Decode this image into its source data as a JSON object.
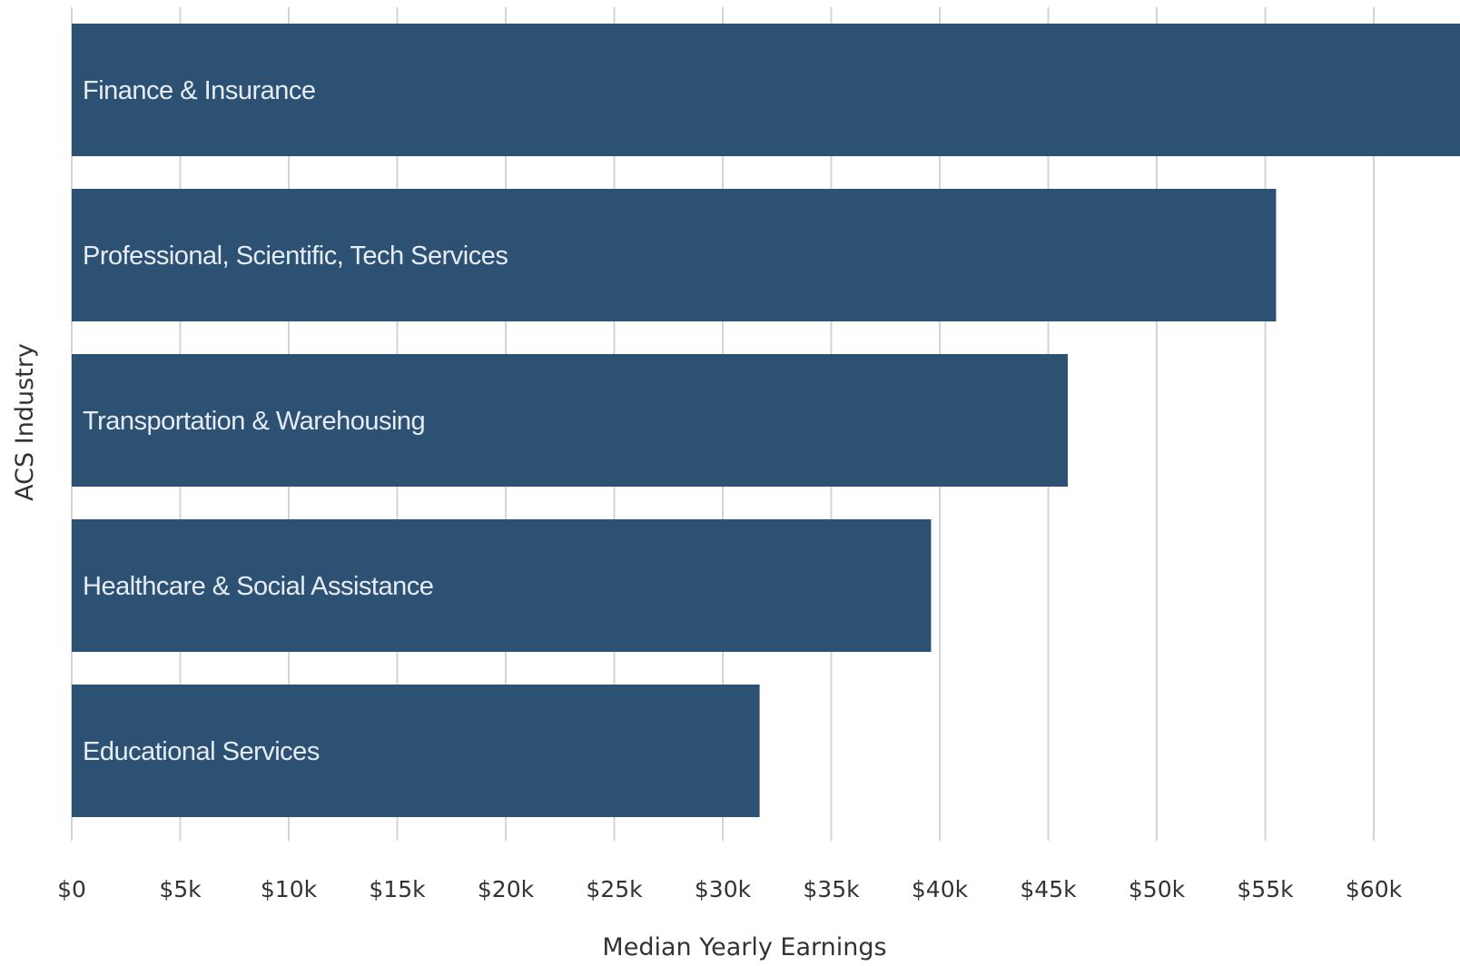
{
  "chart_data": {
    "type": "bar",
    "orientation": "horizontal",
    "categories": [
      "Finance & Insurance",
      "Professional, Scientific, Tech Services",
      "Transportation & Warehousing",
      "Healthcare & Social Assistance",
      "Educational Services"
    ],
    "values": [
      64500,
      55500,
      45900,
      39600,
      31700
    ],
    "xlabel": "Median Yearly Earnings",
    "ylabel": "ACS Industry",
    "xlim": [
      0,
      64000
    ],
    "x_ticks": [
      0,
      5000,
      10000,
      15000,
      20000,
      25000,
      30000,
      35000,
      40000,
      45000,
      50000,
      55000,
      60000
    ],
    "x_tick_labels": [
      "$0",
      "$5k",
      "$10k",
      "$15k",
      "$20k",
      "$25k",
      "$30k",
      "$35k",
      "$40k",
      "$45k",
      "$50k",
      "$55k",
      "$60k"
    ],
    "grid": true,
    "bar_color": "#2d5173",
    "bar_label_color": "#e6ecf3",
    "grid_color": "#d4d4d4"
  }
}
